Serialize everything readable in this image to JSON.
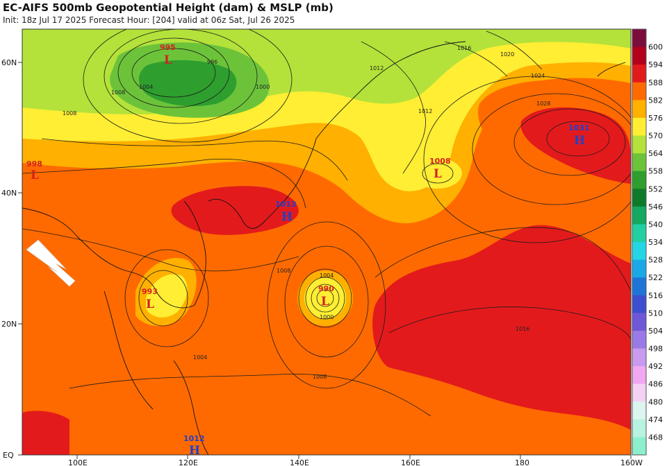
{
  "header": {
    "title": "EC-AIFS 500mb Geopotential Height (dam) & MSLP (mb)",
    "subtitle": "Init: 18z Jul 17 2025   Forecast Hour: [204]   valid at 06z Sat, Jul 26 2025"
  },
  "axes": {
    "lat_labels": [
      "60N",
      "40N",
      "20N",
      "EQ"
    ],
    "lon_labels": [
      "100E",
      "120E",
      "140E",
      "160E",
      "180",
      "160W"
    ]
  },
  "colorbar": {
    "levels": [
      "600",
      "594",
      "588",
      "582",
      "576",
      "570",
      "564",
      "558",
      "552",
      "546",
      "540",
      "534",
      "528",
      "522",
      "516",
      "510",
      "504",
      "498",
      "492",
      "486",
      "480",
      "474",
      "468"
    ],
    "colors": [
      "#7a0d3c",
      "#b3001b",
      "#e31a1c",
      "#ff6a00",
      "#ffb000",
      "#ffee33",
      "#b4e23a",
      "#6cc33a",
      "#2e9e2e",
      "#0d7a2a",
      "#15a860",
      "#20d0a0",
      "#22d6e6",
      "#1aa8e8",
      "#1f74d8",
      "#3d4fd0",
      "#6e58d8",
      "#9a7ae6",
      "#c99af0",
      "#f0a8f0",
      "#f4d2f4",
      "#ddf5f0",
      "#b8f2e0",
      "#8cf0cc"
    ]
  },
  "pressure_centers": [
    {
      "type": "L",
      "value": "995"
    },
    {
      "type": "L",
      "value": "998"
    },
    {
      "type": "H",
      "value": "1013"
    },
    {
      "type": "L",
      "value": "993"
    },
    {
      "type": "L",
      "value": "990"
    },
    {
      "type": "L",
      "value": "1008"
    },
    {
      "type": "H",
      "value": "1031"
    },
    {
      "type": "H",
      "value": "1012"
    }
  ],
  "isobar_labels": [
    "1016",
    "1012",
    "1020",
    "1024",
    "1028",
    "1008",
    "1004",
    "996",
    "1000",
    "1016",
    "1012",
    "1008",
    "1004",
    "1000",
    "1008",
    "1004",
    "1008"
  ]
}
